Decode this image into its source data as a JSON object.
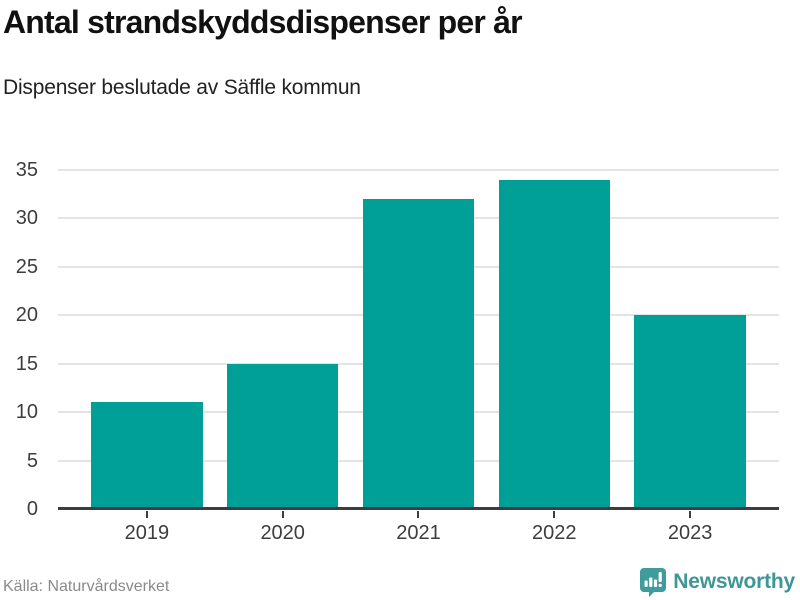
{
  "page": {
    "title": "Antal strandskyddsdispenser per år",
    "subtitle": "Dispenser beslutade av Säffle kommun",
    "source": "Källa: Naturvårdsverket",
    "brand": {
      "name": "Newsworthy",
      "icon": "newsworthy-speech-bubble-bar-chart-icon",
      "color": "#3f9697",
      "icon_color": "#3f9b9c"
    }
  },
  "chart_data": {
    "type": "bar",
    "categories": [
      "2019",
      "2020",
      "2021",
      "2022",
      "2023"
    ],
    "values": [
      11,
      15,
      32,
      34,
      20
    ],
    "title": "Antal strandskyddsdispenser per år",
    "subtitle": "Dispenser beslutade av Säffle kommun",
    "xlabel": "",
    "ylabel": "",
    "ylim": [
      0,
      35
    ],
    "yticks": [
      0,
      5,
      10,
      15,
      20,
      25,
      30,
      35
    ],
    "grid": true,
    "legend": "none",
    "bar_color": "#00a099",
    "gridline_color": "#e4e4e4",
    "axis_color": "#3d3d3d",
    "source": "Källa: Naturvårdsverket"
  }
}
